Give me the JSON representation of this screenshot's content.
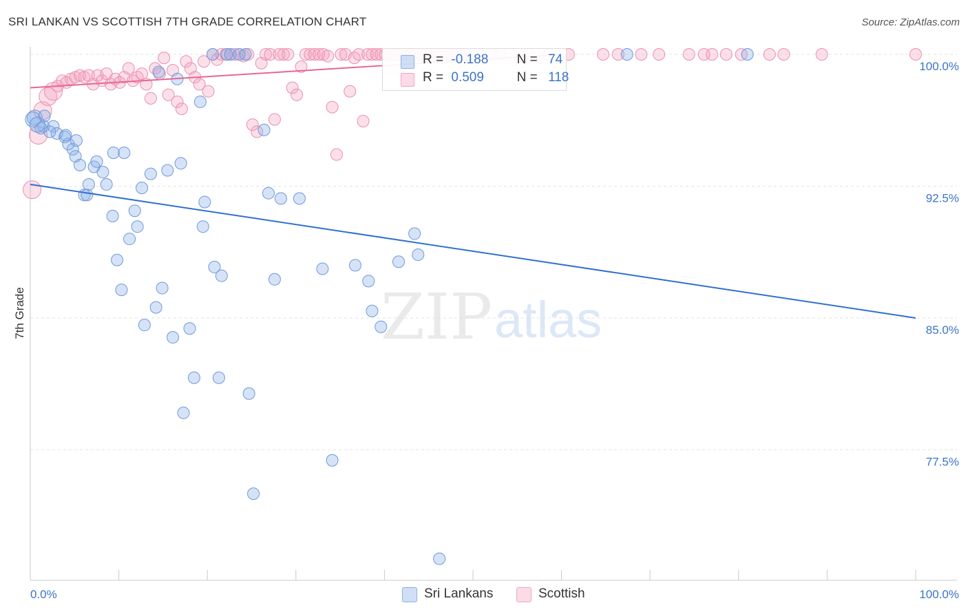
{
  "header": {
    "title": "SRI LANKAN VS SCOTTISH 7TH GRADE CORRELATION CHART",
    "source": "Source: ZipAtlas.com"
  },
  "watermark": {
    "zip": "ZIP",
    "atlas": "atlas"
  },
  "legend_top": {
    "rows": [
      {
        "r_label": "R =",
        "r_value": "-0.188",
        "n_label": "N =",
        "n_value": "74",
        "color": "#8ab0e8"
      },
      {
        "r_label": "R =",
        "r_value": "0.509",
        "n_label": "N =",
        "n_value": "118",
        "color": "#f3a6c0"
      }
    ]
  },
  "legend_bottom": [
    {
      "label": "Sri Lankans",
      "color": "#8ab0e8"
    },
    {
      "label": "Scottish",
      "color": "#f3a6c0"
    }
  ],
  "colors": {
    "blue_fill": "rgba(138,176,232,0.35)",
    "blue_stroke": "#6d98da",
    "blue_line": "#2f6fcf",
    "pink_fill": "rgba(243,166,192,0.35)",
    "pink_stroke": "#ec8db0",
    "pink_line": "#e8668f",
    "tick_label": "#3a73c9",
    "grid": "#e2e2e2"
  },
  "chart_data": {
    "type": "scatter",
    "title": "SRI LANKAN VS SCOTTISH 7TH GRADE CORRELATION CHART",
    "xlabel": "",
    "ylabel": "7th Grade",
    "xlim": [
      0,
      100
    ],
    "ylim": [
      71.5,
      100.9
    ],
    "x_tick_labels": [
      "0.0%",
      "100.0%"
    ],
    "y_ticks": [
      77.5,
      85.0,
      92.5,
      100.0
    ],
    "y_tick_labels": [
      "77.5%",
      "85.0%",
      "92.5%",
      "100.0%"
    ],
    "grid": true,
    "legend_position": "top-center",
    "series": [
      {
        "name": "Sri Lankans",
        "r": -0.188,
        "n": 74,
        "trend": {
          "x": [
            0,
            100
          ],
          "y": [
            92.6,
            85.0
          ]
        },
        "points": [
          [
            0.5,
            96.4
          ],
          [
            1.5,
            95.9
          ],
          [
            1.6,
            96.5
          ],
          [
            2.6,
            95.9
          ],
          [
            3.0,
            95.5
          ],
          [
            3.9,
            95.3
          ],
          [
            4.8,
            94.6
          ],
          [
            4.3,
            94.9
          ],
          [
            4.0,
            95.4
          ],
          [
            5.1,
            94.2
          ],
          [
            5.2,
            95.1
          ],
          [
            5.6,
            93.7
          ],
          [
            6.1,
            92.0
          ],
          [
            6.4,
            92.0
          ],
          [
            6.6,
            92.6
          ],
          [
            7.2,
            93.6
          ],
          [
            7.5,
            93.9
          ],
          [
            8.2,
            93.3
          ],
          [
            8.6,
            92.6
          ],
          [
            9.3,
            90.8
          ],
          [
            9.8,
            88.3
          ],
          [
            10.3,
            86.6
          ],
          [
            9.4,
            94.4
          ],
          [
            10.6,
            94.4
          ],
          [
            11.2,
            89.5
          ],
          [
            11.8,
            91.1
          ],
          [
            12.1,
            90.2
          ],
          [
            12.6,
            92.4
          ],
          [
            12.9,
            84.6
          ],
          [
            13.6,
            93.2
          ],
          [
            14.2,
            85.6
          ],
          [
            14.9,
            86.7
          ],
          [
            14.5,
            99.0
          ],
          [
            15.5,
            93.4
          ],
          [
            16.1,
            83.9
          ],
          [
            16.6,
            98.6
          ],
          [
            17.0,
            93.8
          ],
          [
            17.3,
            79.6
          ],
          [
            18.0,
            84.4
          ],
          [
            18.5,
            81.6
          ],
          [
            19.2,
            97.3
          ],
          [
            19.5,
            90.2
          ],
          [
            19.7,
            91.6
          ],
          [
            20.6,
            100.0
          ],
          [
            20.8,
            87.9
          ],
          [
            21.3,
            81.6
          ],
          [
            21.6,
            87.4
          ],
          [
            22.2,
            100.0
          ],
          [
            22.6,
            100.0
          ],
          [
            23.6,
            100.0
          ],
          [
            24.3,
            100.0
          ],
          [
            24.7,
            80.7
          ],
          [
            25.2,
            75.0
          ],
          [
            26.4,
            95.7
          ],
          [
            26.9,
            92.1
          ],
          [
            27.6,
            87.2
          ],
          [
            28.3,
            91.8
          ],
          [
            30.4,
            91.8
          ],
          [
            33.0,
            87.8
          ],
          [
            34.1,
            76.9
          ],
          [
            36.7,
            88.0
          ],
          [
            38.2,
            87.1
          ],
          [
            38.6,
            85.4
          ],
          [
            39.6,
            84.5
          ],
          [
            41.6,
            88.2
          ],
          [
            43.4,
            89.8
          ],
          [
            43.8,
            88.6
          ],
          [
            46.2,
            71.3
          ],
          [
            67.4,
            100.0
          ],
          [
            81.0,
            100.0
          ],
          [
            0.3,
            96.3
          ],
          [
            1.2,
            95.8
          ],
          [
            2.2,
            95.6
          ],
          [
            0.8,
            96.0
          ]
        ]
      },
      {
        "name": "Scottish",
        "r": 0.509,
        "n": 118,
        "trend": {
          "x": [
            0,
            60
          ],
          "y": [
            98.1,
            100.0
          ]
        },
        "points": [
          [
            0.2,
            92.3
          ],
          [
            0.9,
            95.4
          ],
          [
            1.4,
            96.8
          ],
          [
            2.0,
            97.6
          ],
          [
            2.6,
            97.9
          ],
          [
            3.1,
            98.2
          ],
          [
            3.6,
            98.5
          ],
          [
            4.1,
            98.4
          ],
          [
            4.6,
            98.6
          ],
          [
            5.1,
            98.7
          ],
          [
            5.6,
            98.8
          ],
          [
            6.1,
            98.7
          ],
          [
            6.6,
            98.8
          ],
          [
            7.1,
            98.3
          ],
          [
            7.6,
            98.8
          ],
          [
            8.1,
            98.5
          ],
          [
            8.6,
            98.9
          ],
          [
            9.1,
            98.3
          ],
          [
            9.6,
            98.6
          ],
          [
            10.1,
            98.4
          ],
          [
            10.6,
            98.7
          ],
          [
            11.1,
            99.2
          ],
          [
            11.6,
            98.5
          ],
          [
            12.1,
            98.7
          ],
          [
            12.6,
            98.9
          ],
          [
            13.1,
            98.3
          ],
          [
            13.6,
            97.5
          ],
          [
            14.1,
            99.2
          ],
          [
            14.6,
            98.9
          ],
          [
            15.1,
            99.8
          ],
          [
            15.6,
            97.7
          ],
          [
            16.1,
            99.1
          ],
          [
            16.6,
            97.3
          ],
          [
            17.1,
            96.9
          ],
          [
            17.6,
            99.6
          ],
          [
            18.1,
            99.2
          ],
          [
            18.6,
            98.7
          ],
          [
            19.1,
            98.3
          ],
          [
            19.6,
            99.6
          ],
          [
            20.1,
            97.9
          ],
          [
            20.6,
            100.0
          ],
          [
            21.1,
            99.7
          ],
          [
            21.6,
            100.0
          ],
          [
            22.1,
            100.0
          ],
          [
            22.6,
            100.0
          ],
          [
            23.1,
            100.0
          ],
          [
            23.6,
            100.0
          ],
          [
            24.1,
            99.9
          ],
          [
            24.6,
            100.0
          ],
          [
            25.1,
            96.0
          ],
          [
            25.6,
            95.6
          ],
          [
            26.1,
            99.5
          ],
          [
            26.6,
            100.0
          ],
          [
            27.1,
            100.0
          ],
          [
            27.6,
            96.3
          ],
          [
            28.1,
            100.0
          ],
          [
            28.6,
            100.0
          ],
          [
            29.1,
            100.0
          ],
          [
            29.6,
            98.1
          ],
          [
            30.1,
            97.7
          ],
          [
            30.6,
            99.3
          ],
          [
            31.1,
            100.0
          ],
          [
            31.6,
            100.0
          ],
          [
            32.1,
            100.0
          ],
          [
            32.6,
            100.0
          ],
          [
            33.1,
            100.0
          ],
          [
            33.6,
            99.9
          ],
          [
            34.1,
            97.0
          ],
          [
            34.6,
            94.3
          ],
          [
            35.1,
            100.0
          ],
          [
            35.6,
            100.0
          ],
          [
            36.1,
            97.9
          ],
          [
            36.6,
            99.8
          ],
          [
            37.1,
            100.0
          ],
          [
            37.6,
            96.2
          ],
          [
            38.1,
            100.0
          ],
          [
            38.6,
            100.0
          ],
          [
            39.1,
            100.0
          ],
          [
            39.6,
            100.0
          ],
          [
            40.1,
            100.0
          ],
          [
            40.6,
            100.0
          ],
          [
            41.1,
            100.0
          ],
          [
            41.6,
            100.0
          ],
          [
            42.1,
            100.0
          ],
          [
            42.6,
            100.0
          ],
          [
            43.1,
            100.0
          ],
          [
            43.6,
            100.0
          ],
          [
            44.1,
            100.0
          ],
          [
            44.6,
            100.0
          ],
          [
            45.1,
            100.0
          ],
          [
            45.6,
            100.0
          ],
          [
            46.1,
            100.0
          ],
          [
            46.6,
            100.0
          ],
          [
            47.1,
            100.0
          ],
          [
            47.6,
            100.0
          ],
          [
            48.1,
            100.0
          ],
          [
            48.6,
            100.0
          ],
          [
            49.1,
            100.0
          ],
          [
            50.1,
            100.0
          ],
          [
            51.1,
            100.0
          ],
          [
            52.1,
            100.0
          ],
          [
            53.1,
            100.0
          ],
          [
            56.3,
            100.0
          ],
          [
            58.6,
            100.0
          ],
          [
            60.8,
            100.0
          ],
          [
            64.7,
            100.0
          ],
          [
            66.4,
            100.0
          ],
          [
            69.0,
            100.0
          ],
          [
            71.0,
            100.0
          ],
          [
            74.4,
            100.0
          ],
          [
            76.1,
            100.0
          ],
          [
            77.0,
            100.0
          ],
          [
            78.6,
            100.0
          ],
          [
            80.3,
            100.0
          ],
          [
            83.5,
            100.0
          ],
          [
            85.1,
            100.0
          ],
          [
            89.4,
            100.0
          ],
          [
            100.0,
            100.0
          ]
        ]
      }
    ]
  }
}
